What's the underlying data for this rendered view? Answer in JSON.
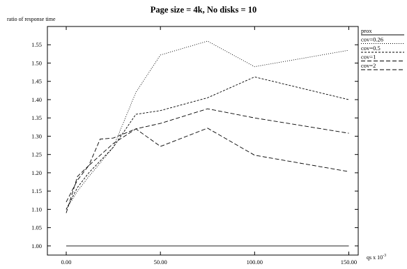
{
  "chart_data": {
    "type": "line",
    "title": "Page size = 4k, No disks = 10",
    "ylabel": "ratio of response time",
    "xlabel_base": "qs x 10",
    "xlabel_exp": "-3",
    "xlim": [
      -10,
      155
    ],
    "ylim": [
      0.975,
      1.6
    ],
    "xticks": [
      0,
      50,
      100,
      150
    ],
    "xtick_labels": [
      "0.00",
      "50.00",
      "100.00",
      "150.00"
    ],
    "yticks": [
      1.0,
      1.05,
      1.1,
      1.15,
      1.2,
      1.25,
      1.3,
      1.35,
      1.4,
      1.45,
      1.5,
      1.55
    ],
    "ytick_labels": [
      "1.00",
      "1.05",
      "1.10",
      "1.15",
      "1.20",
      "1.25",
      "1.30",
      "1.35",
      "1.40",
      "1.45",
      "1.50",
      "1.55"
    ],
    "grid": false,
    "legend_position": "right",
    "series": [
      {
        "name": "prox",
        "dash": "none",
        "x": [
          0,
          150
        ],
        "y": [
          1.0,
          1.0
        ]
      },
      {
        "name": "cov=0.26",
        "dash": "1,2",
        "x": [
          0,
          6,
          12,
          25,
          37,
          50,
          75,
          100,
          150
        ],
        "y": [
          1.1,
          1.15,
          1.19,
          1.27,
          1.42,
          1.522,
          1.56,
          1.49,
          1.535
        ]
      },
      {
        "name": "cov=0.5",
        "dash": "3,2",
        "x": [
          0,
          6,
          12,
          25,
          37,
          50,
          75,
          100,
          150
        ],
        "y": [
          1.1,
          1.16,
          1.2,
          1.27,
          1.36,
          1.37,
          1.405,
          1.462,
          1.4
        ]
      },
      {
        "name": "cov=1",
        "dash": "6,3",
        "x": [
          0,
          6,
          12,
          25,
          37,
          50,
          75,
          100,
          150
        ],
        "y": [
          1.12,
          1.18,
          1.22,
          1.28,
          1.32,
          1.335,
          1.375,
          1.35,
          1.308
        ]
      },
      {
        "name": "cov=2",
        "dash": "6,3",
        "x": [
          0,
          6,
          12,
          18,
          25,
          37,
          50,
          75,
          100,
          150
        ],
        "y": [
          1.09,
          1.19,
          1.22,
          1.292,
          1.295,
          1.32,
          1.272,
          1.322,
          1.248,
          1.203
        ]
      }
    ]
  }
}
